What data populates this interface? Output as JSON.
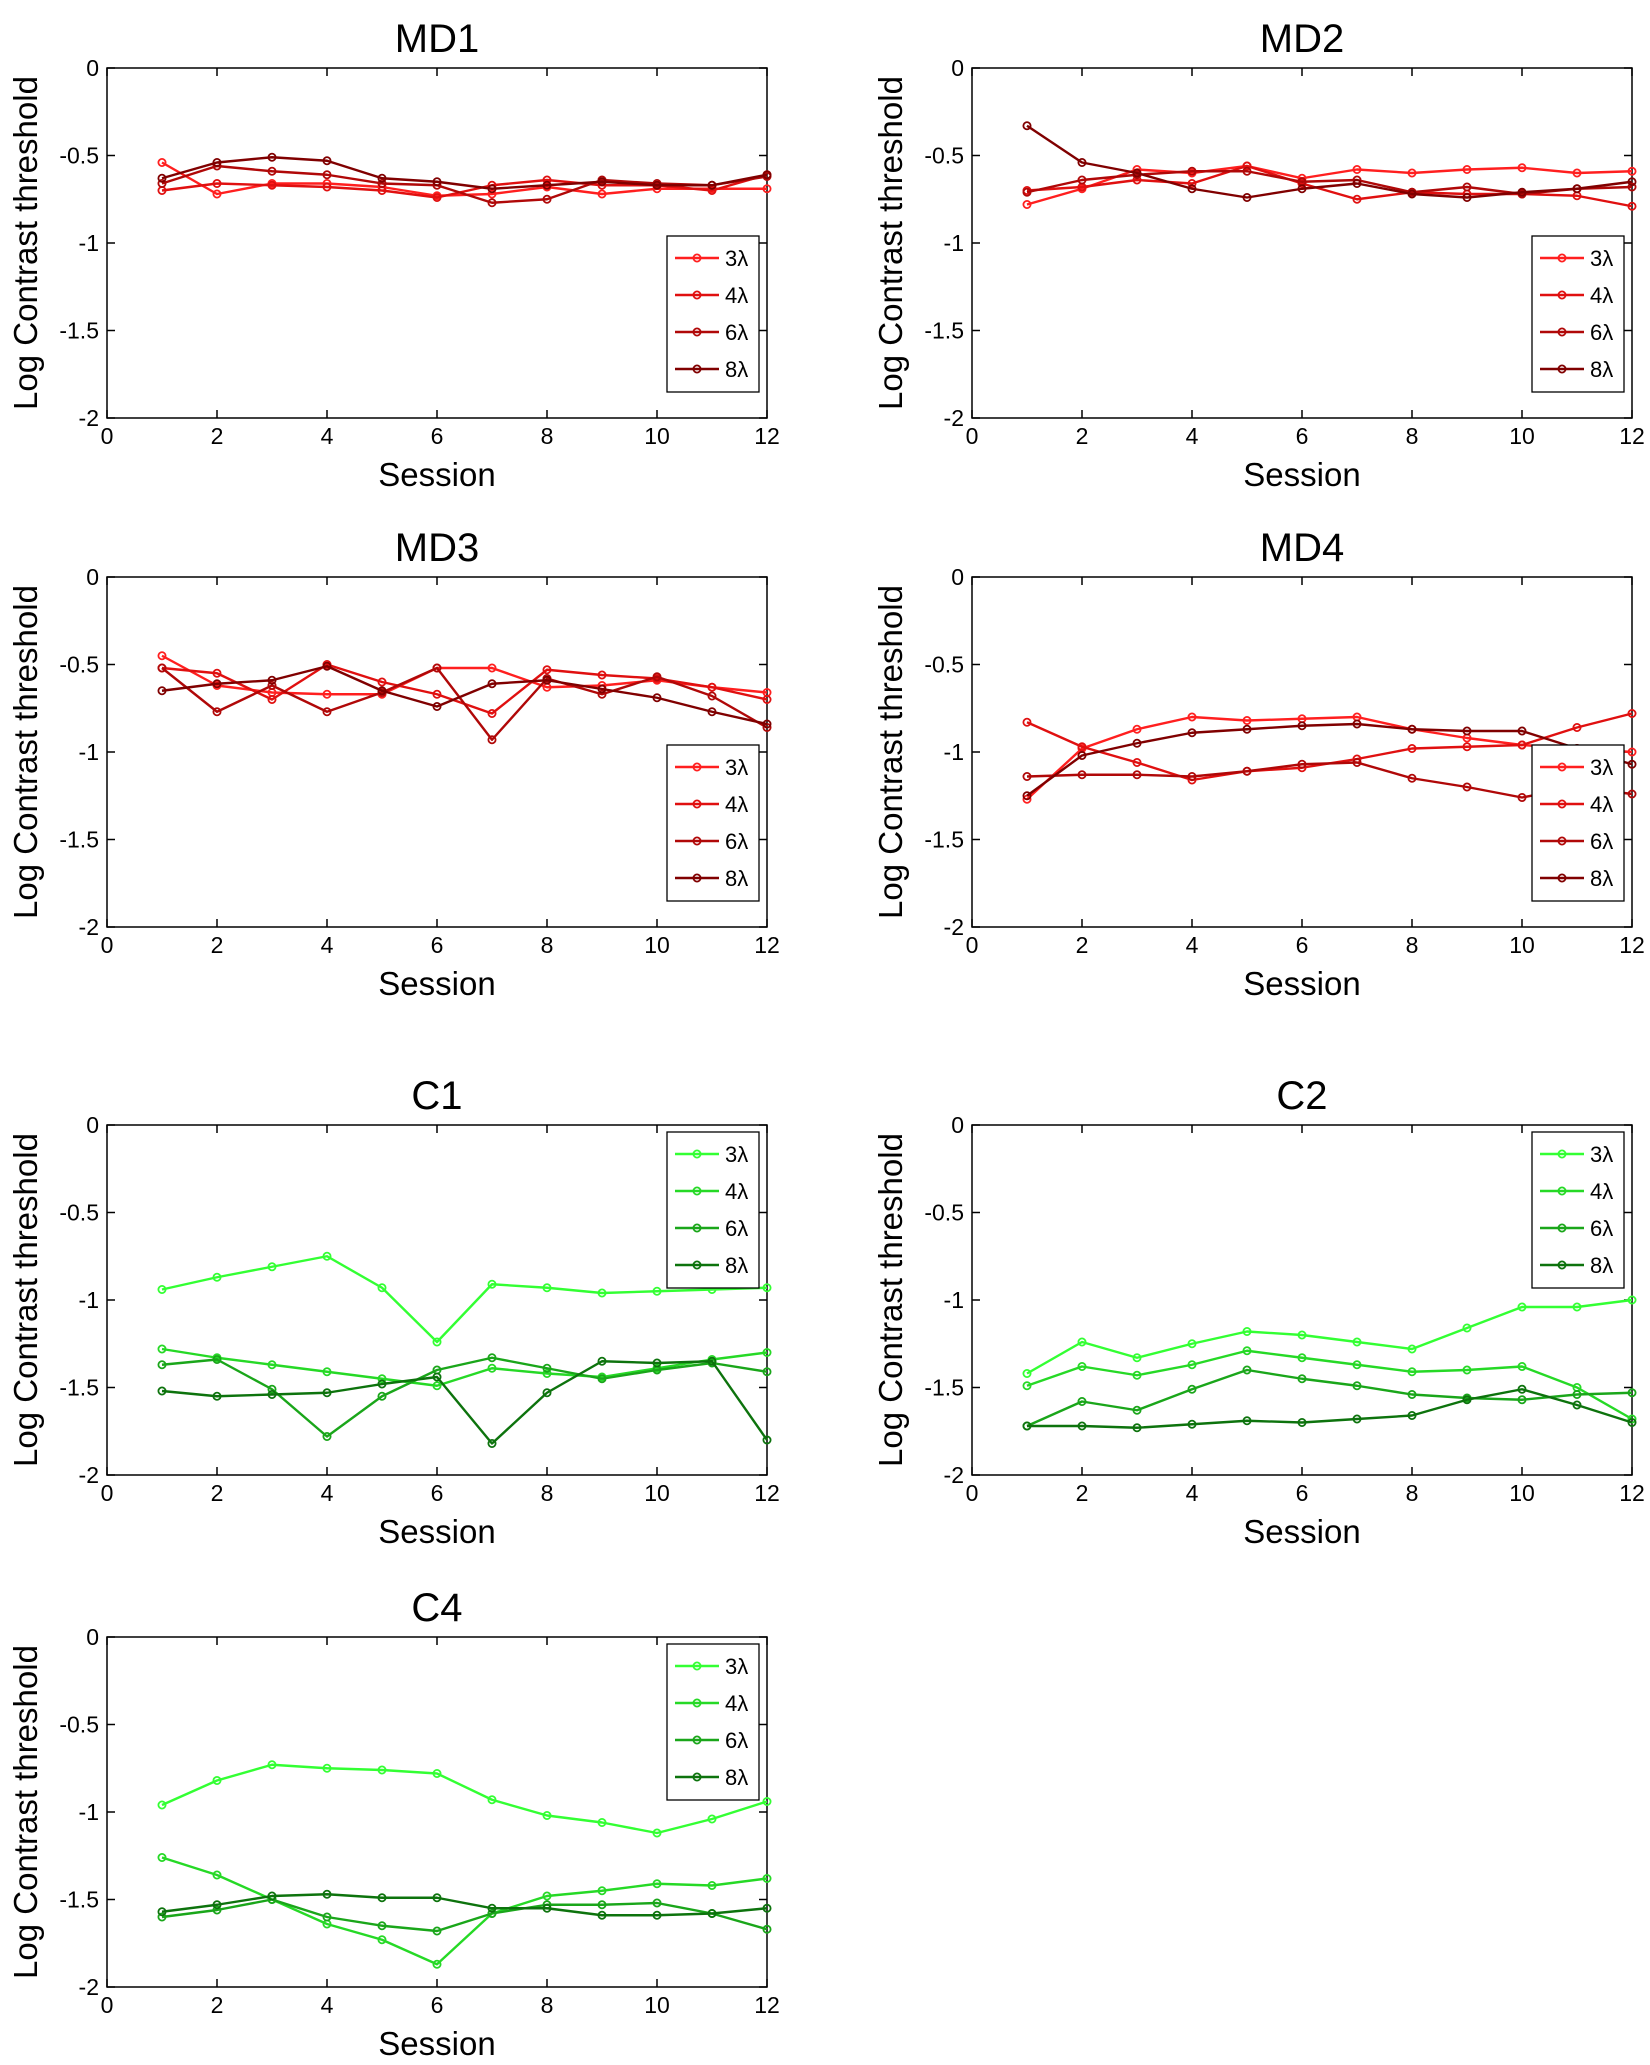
{
  "legend_labels": [
    "3λ",
    "4λ",
    "6λ",
    "8λ"
  ],
  "colors": {
    "red": [
      "#ff1f1f",
      "#e01010",
      "#b00808",
      "#800000"
    ],
    "green": [
      "#33ff33",
      "#26d926",
      "#1aa61a",
      "#0d730d"
    ]
  },
  "chart_data": [
    {
      "type": "line",
      "title": "MD1",
      "palette": "red",
      "legend_position": "right-middle",
      "xlabel": "Session",
      "ylabel": "Log Contrast threshold",
      "xlim": [
        0,
        12
      ],
      "ylim": [
        -2,
        0
      ],
      "xticks": [
        0,
        2,
        4,
        6,
        8,
        10,
        12
      ],
      "yticks": [
        -2,
        -1.5,
        -1,
        -0.5,
        0
      ],
      "x": [
        1,
        2,
        3,
        4,
        5,
        6,
        7,
        8,
        9,
        10,
        11,
        12
      ],
      "series": [
        {
          "name": "3λ",
          "values": [
            -0.54,
            -0.72,
            -0.66,
            -0.66,
            -0.68,
            -0.73,
            -0.72,
            -0.68,
            -0.72,
            -0.69,
            -0.69,
            -0.69
          ]
        },
        {
          "name": "4λ",
          "values": [
            -0.7,
            -0.66,
            -0.67,
            -0.68,
            -0.7,
            -0.74,
            -0.67,
            -0.64,
            -0.67,
            -0.67,
            -0.7,
            -0.61
          ]
        },
        {
          "name": "6λ",
          "values": [
            -0.66,
            -0.56,
            -0.59,
            -0.61,
            -0.66,
            -0.67,
            -0.77,
            -0.75,
            -0.64,
            -0.66,
            -0.67,
            -0.62
          ]
        },
        {
          "name": "8λ",
          "values": [
            -0.63,
            -0.54,
            -0.51,
            -0.53,
            -0.63,
            -0.65,
            -0.69,
            -0.67,
            -0.65,
            -0.67,
            -0.67,
            -0.61
          ]
        }
      ]
    },
    {
      "type": "line",
      "title": "MD2",
      "palette": "red",
      "legend_position": "right-middle",
      "xlabel": "Session",
      "ylabel": "Log Contrast threshold",
      "xlim": [
        0,
        12
      ],
      "ylim": [
        -2,
        0
      ],
      "xticks": [
        0,
        2,
        4,
        6,
        8,
        10,
        12
      ],
      "yticks": [
        -2,
        -1.5,
        -1,
        -0.5,
        0
      ],
      "x": [
        1,
        2,
        3,
        4,
        5,
        6,
        7,
        8,
        9,
        10,
        11,
        12
      ],
      "series": [
        {
          "name": "3λ",
          "values": [
            -0.78,
            -0.69,
            -0.58,
            -0.6,
            -0.56,
            -0.63,
            -0.58,
            -0.6,
            -0.58,
            -0.57,
            -0.6,
            -0.59
          ]
        },
        {
          "name": "4λ",
          "values": [
            -0.7,
            -0.68,
            -0.64,
            -0.66,
            -0.56,
            -0.66,
            -0.75,
            -0.71,
            -0.72,
            -0.72,
            -0.73,
            -0.79
          ]
        },
        {
          "name": "6λ",
          "values": [
            -0.71,
            -0.64,
            -0.61,
            -0.59,
            -0.59,
            -0.65,
            -0.64,
            -0.71,
            -0.68,
            -0.72,
            -0.69,
            -0.68
          ]
        },
        {
          "name": "8λ",
          "values": [
            -0.33,
            -0.54,
            -0.6,
            -0.69,
            -0.74,
            -0.69,
            -0.66,
            -0.72,
            -0.74,
            -0.71,
            -0.69,
            -0.65
          ]
        }
      ]
    },
    {
      "type": "line",
      "title": "MD3",
      "palette": "red",
      "legend_position": "right-middle",
      "xlabel": "Session",
      "ylabel": "Log Contrast threshold",
      "xlim": [
        0,
        12
      ],
      "ylim": [
        -2,
        0
      ],
      "xticks": [
        0,
        2,
        4,
        6,
        8,
        10,
        12
      ],
      "yticks": [
        -2,
        -1.5,
        -1,
        -0.5,
        0
      ],
      "x": [
        1,
        2,
        3,
        4,
        5,
        6,
        7,
        8,
        9,
        10,
        11,
        12
      ],
      "series": [
        {
          "name": "3λ",
          "values": [
            -0.45,
            -0.62,
            -0.66,
            -0.67,
            -0.67,
            -0.52,
            -0.52,
            -0.63,
            -0.62,
            -0.59,
            -0.63,
            -0.66
          ]
        },
        {
          "name": "4λ",
          "values": [
            -0.52,
            -0.55,
            -0.7,
            -0.5,
            -0.6,
            -0.67,
            -0.78,
            -0.53,
            -0.56,
            -0.58,
            -0.63,
            -0.7
          ]
        },
        {
          "name": "6λ",
          "values": [
            -0.52,
            -0.77,
            -0.62,
            -0.77,
            -0.66,
            -0.52,
            -0.93,
            -0.58,
            -0.67,
            -0.57,
            -0.68,
            -0.86
          ]
        },
        {
          "name": "8λ",
          "values": [
            -0.65,
            -0.61,
            -0.59,
            -0.51,
            -0.65,
            -0.74,
            -0.61,
            -0.59,
            -0.64,
            -0.69,
            -0.77,
            -0.84
          ]
        }
      ]
    },
    {
      "type": "line",
      "title": "MD4",
      "palette": "red",
      "legend_position": "right-middle",
      "xlabel": "Session",
      "ylabel": "Log Contrast threshold",
      "xlim": [
        0,
        12
      ],
      "ylim": [
        -2,
        0
      ],
      "xticks": [
        0,
        2,
        4,
        6,
        8,
        10,
        12
      ],
      "yticks": [
        -2,
        -1.5,
        -1,
        -0.5,
        0
      ],
      "x": [
        1,
        2,
        3,
        4,
        5,
        6,
        7,
        8,
        9,
        10,
        11,
        12
      ],
      "series": [
        {
          "name": "3λ",
          "values": [
            -1.27,
            -0.98,
            -0.87,
            -0.8,
            -0.82,
            -0.81,
            -0.8,
            -0.87,
            -0.92,
            -0.96,
            -0.98,
            -1.0
          ]
        },
        {
          "name": "4λ",
          "values": [
            -0.83,
            -0.97,
            -1.06,
            -1.16,
            -1.11,
            -1.09,
            -1.04,
            -0.98,
            -0.97,
            -0.96,
            -0.86,
            -0.78
          ]
        },
        {
          "name": "6λ",
          "values": [
            -1.14,
            -1.13,
            -1.13,
            -1.14,
            -1.11,
            -1.07,
            -1.06,
            -1.15,
            -1.2,
            -1.26,
            -1.2,
            -1.24
          ]
        },
        {
          "name": "8λ",
          "values": [
            -1.25,
            -1.02,
            -0.95,
            -0.89,
            -0.87,
            -0.85,
            -0.84,
            -0.87,
            -0.88,
            -0.88,
            -0.98,
            -1.07
          ]
        }
      ]
    },
    {
      "type": "line",
      "title": "C1",
      "palette": "green",
      "legend_position": "top-right",
      "xlabel": "Session",
      "ylabel": "Log Contrast threshold",
      "xlim": [
        0,
        12
      ],
      "ylim": [
        -2,
        0
      ],
      "xticks": [
        0,
        2,
        4,
        6,
        8,
        10,
        12
      ],
      "yticks": [
        -2,
        -1.5,
        -1,
        -0.5,
        0
      ],
      "x": [
        1,
        2,
        3,
        4,
        5,
        6,
        7,
        8,
        9,
        10,
        11,
        12
      ],
      "series": [
        {
          "name": "3λ",
          "values": [
            -0.94,
            -0.87,
            -0.81,
            -0.75,
            -0.93,
            -1.24,
            -0.91,
            -0.93,
            -0.96,
            -0.95,
            -0.94,
            -0.93
          ]
        },
        {
          "name": "4λ",
          "values": [
            -1.28,
            -1.33,
            -1.37,
            -1.41,
            -1.45,
            -1.49,
            -1.39,
            -1.42,
            -1.44,
            -1.39,
            -1.34,
            -1.3
          ]
        },
        {
          "name": "6λ",
          "values": [
            -1.37,
            -1.34,
            -1.51,
            -1.78,
            -1.55,
            -1.4,
            -1.33,
            -1.39,
            -1.45,
            -1.4,
            -1.36,
            -1.41
          ]
        },
        {
          "name": "8λ",
          "values": [
            -1.52,
            -1.55,
            -1.54,
            -1.53,
            -1.48,
            -1.44,
            -1.82,
            -1.53,
            -1.35,
            -1.36,
            -1.35,
            -1.8
          ]
        }
      ]
    },
    {
      "type": "line",
      "title": "C2",
      "palette": "green",
      "legend_position": "top-right",
      "xlabel": "Session",
      "ylabel": "Log Contrast threshold",
      "xlim": [
        0,
        12
      ],
      "ylim": [
        -2,
        0
      ],
      "xticks": [
        0,
        2,
        4,
        6,
        8,
        10,
        12
      ],
      "yticks": [
        -2,
        -1.5,
        -1,
        -0.5,
        0
      ],
      "x": [
        1,
        2,
        3,
        4,
        5,
        6,
        7,
        8,
        9,
        10,
        11,
        12
      ],
      "series": [
        {
          "name": "3λ",
          "values": [
            -1.42,
            -1.24,
            -1.33,
            -1.25,
            -1.18,
            -1.2,
            -1.24,
            -1.28,
            -1.16,
            -1.04,
            -1.04,
            -1.0
          ]
        },
        {
          "name": "4λ",
          "values": [
            -1.49,
            -1.38,
            -1.43,
            -1.37,
            -1.29,
            -1.33,
            -1.37,
            -1.41,
            -1.4,
            -1.38,
            -1.5,
            -1.68
          ]
        },
        {
          "name": "6λ",
          "values": [
            -1.72,
            -1.58,
            -1.63,
            -1.51,
            -1.4,
            -1.45,
            -1.49,
            -1.54,
            -1.56,
            -1.57,
            -1.54,
            -1.53
          ]
        },
        {
          "name": "8λ",
          "values": [
            -1.72,
            -1.72,
            -1.73,
            -1.71,
            -1.69,
            -1.7,
            -1.68,
            -1.66,
            -1.57,
            -1.51,
            -1.6,
            -1.7
          ]
        }
      ]
    },
    {
      "type": "line",
      "title": "C4",
      "palette": "green",
      "legend_position": "top-right",
      "xlabel": "Session",
      "ylabel": "Log Contrast threshold",
      "xlim": [
        0,
        12
      ],
      "ylim": [
        -2,
        0
      ],
      "xticks": [
        0,
        2,
        4,
        6,
        8,
        10,
        12
      ],
      "yticks": [
        -2,
        -1.5,
        -1,
        -0.5,
        0
      ],
      "x": [
        1,
        2,
        3,
        4,
        5,
        6,
        7,
        8,
        9,
        10,
        11,
        12
      ],
      "series": [
        {
          "name": "3λ",
          "values": [
            -0.96,
            -0.82,
            -0.73,
            -0.75,
            -0.76,
            -0.78,
            -0.93,
            -1.02,
            -1.06,
            -1.12,
            -1.04,
            -0.94
          ]
        },
        {
          "name": "4λ",
          "values": [
            -1.26,
            -1.36,
            -1.5,
            -1.64,
            -1.73,
            -1.87,
            -1.58,
            -1.48,
            -1.45,
            -1.41,
            -1.42,
            -1.38
          ]
        },
        {
          "name": "6λ",
          "values": [
            -1.6,
            -1.56,
            -1.5,
            -1.6,
            -1.65,
            -1.68,
            -1.58,
            -1.53,
            -1.53,
            -1.52,
            -1.58,
            -1.67
          ]
        },
        {
          "name": "8λ",
          "values": [
            -1.57,
            -1.53,
            -1.48,
            -1.47,
            -1.49,
            -1.49,
            -1.55,
            -1.55,
            -1.59,
            -1.59,
            -1.58,
            -1.55
          ]
        }
      ]
    }
  ]
}
